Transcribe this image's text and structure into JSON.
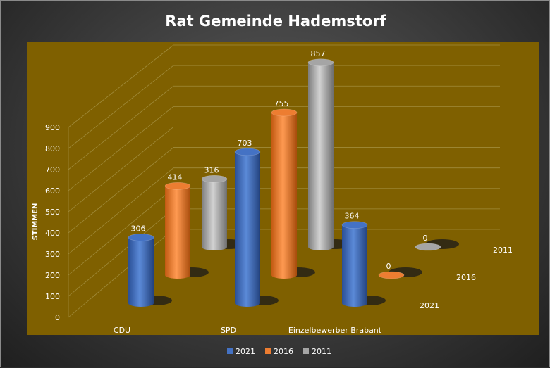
{
  "chart_data": {
    "type": "bar",
    "title": "Rat Gemeinde Hademstorf",
    "ylabel": "STIMMEN",
    "xlabel": "",
    "ylim": [
      0,
      900
    ],
    "yticks": [
      "0",
      "100",
      "200",
      "300",
      "400",
      "500",
      "600",
      "700",
      "800",
      "900"
    ],
    "categories": [
      "CDU",
      "SPD",
      "Einzelbewerber Brabant"
    ],
    "series": [
      {
        "name": "2021",
        "values": [
          306,
          703,
          364
        ],
        "color": "#4472c4"
      },
      {
        "name": "2016",
        "values": [
          414,
          755,
          0
        ],
        "color": "#ed7d31"
      },
      {
        "name": "2011",
        "values": [
          316,
          857,
          0
        ],
        "color": "#a5a5a5"
      }
    ],
    "plot_background": "#7f6000",
    "grid": true,
    "legend_position": "bottom",
    "chart_style": "3d-cylinder"
  }
}
